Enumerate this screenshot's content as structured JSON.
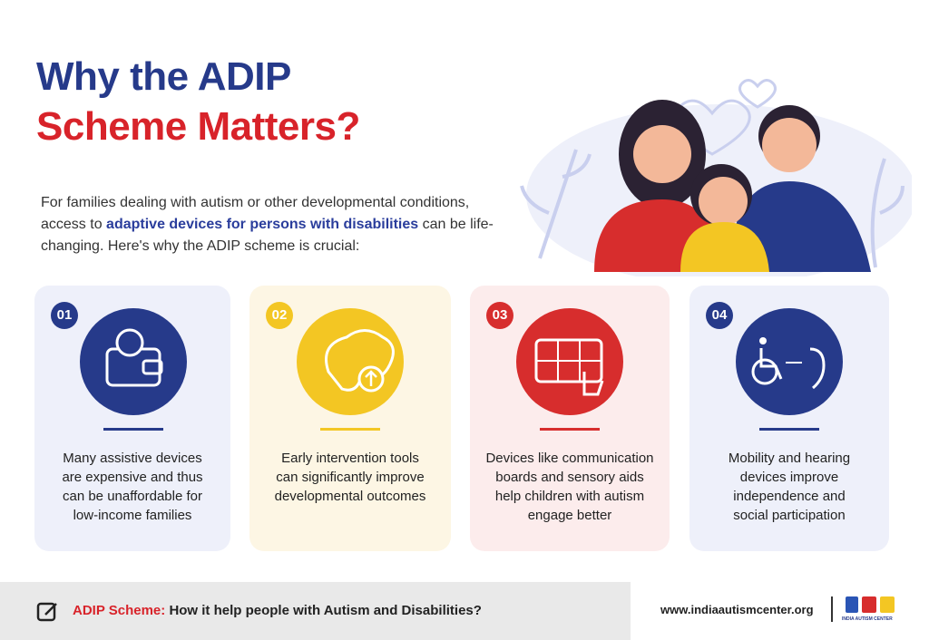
{
  "header": {
    "title_line1": "Why the ADIP",
    "title_line2": "Scheme Matters?"
  },
  "intro": {
    "before": "For families dealing with autism or other developmental conditions, access to",
    "highlight": "adaptive devices for persons with disabilities",
    "after": "can be life-changing. Here's why the ADIP scheme is crucial:"
  },
  "cards": [
    {
      "number": "01",
      "lines": [
        "Many assistive devices",
        "are expensive and thus",
        "can be unaffordable for",
        "low-income families"
      ]
    },
    {
      "number": "02",
      "lines": [
        "Early intervention tools",
        "can significantly improve",
        "developmental outcomes"
      ]
    },
    {
      "number": "03",
      "lines": [
        "Devices like communication",
        "boards and sensory aids",
        "help children with autism",
        "engage better"
      ]
    },
    {
      "number": "04",
      "lines": [
        "Mobility and hearing",
        "devices improve",
        "independence and",
        "social participation"
      ]
    }
  ],
  "footer": {
    "label": "ADIP Scheme:",
    "text": "How it help people with Autism and Disabilities?",
    "url": "www.indiaautismcenter.org",
    "logo_text": "INDIA AUTISM CENTER"
  }
}
